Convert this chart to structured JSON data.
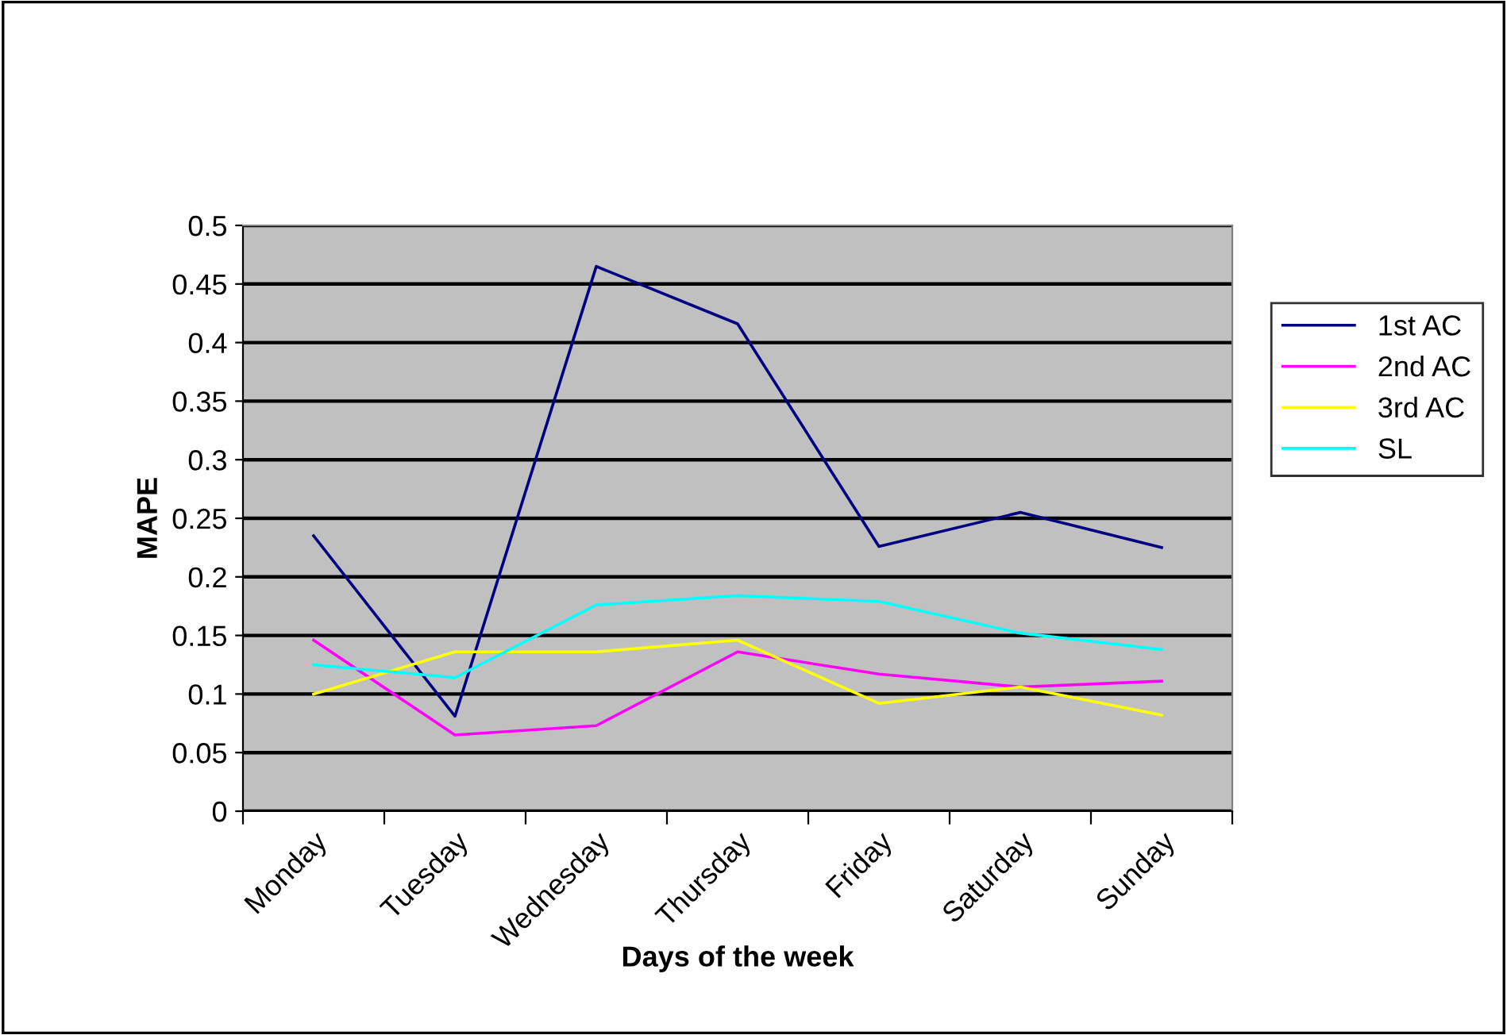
{
  "chart_data": {
    "type": "line",
    "xlabel": "Days of the week",
    "ylabel": "MAPE",
    "categories": [
      "Monday",
      "Tuesday",
      "Wednesday",
      "Thursday",
      "Friday",
      "Saturday",
      "Sunday"
    ],
    "series": [
      {
        "name": "1st AC",
        "color": "#000080",
        "values": [
          0.235,
          0.081,
          0.465,
          0.416,
          0.226,
          0.255,
          0.225
        ]
      },
      {
        "name": "2nd AC",
        "color": "#ff00ff",
        "values": [
          0.146,
          0.065,
          0.073,
          0.136,
          0.117,
          0.106,
          0.111
        ]
      },
      {
        "name": "3rd AC",
        "color": "#ffff00",
        "values": [
          0.1,
          0.136,
          0.136,
          0.146,
          0.092,
          0.106,
          0.082
        ]
      },
      {
        "name": "SL",
        "color": "#00ffff",
        "values": [
          0.125,
          0.114,
          0.176,
          0.184,
          0.179,
          0.152,
          0.138
        ]
      }
    ],
    "ylim": [
      0,
      0.5
    ],
    "yticks": [
      0,
      0.05,
      0.1,
      0.15,
      0.2,
      0.25,
      0.3,
      0.35,
      0.4,
      0.45,
      0.5
    ],
    "grid": "y",
    "legend": "right",
    "marker": "none",
    "line_style": "solid"
  }
}
